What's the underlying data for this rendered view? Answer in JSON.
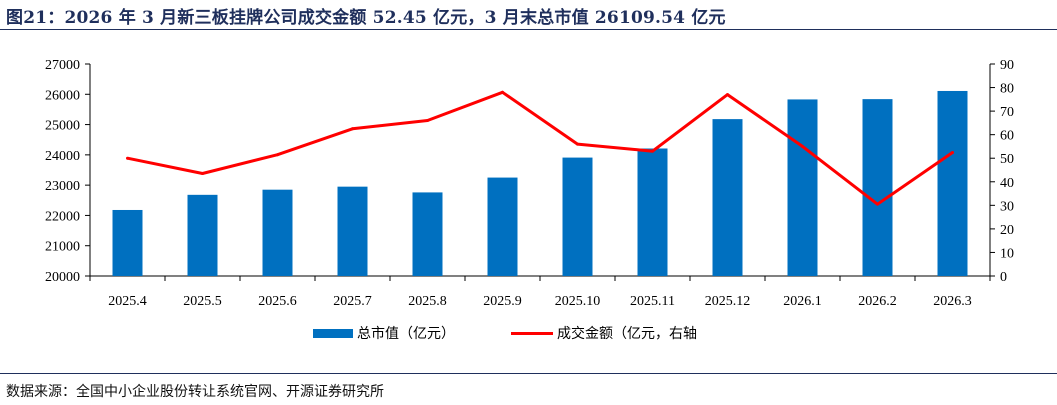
{
  "header": {
    "title": "图21：2026 年 3 月新三板挂牌公司成交金额 52.45 亿元，3 月末总市值 26109.54 亿元"
  },
  "footer": {
    "source": "数据来源：全国中小企业股份转让系统官网、开源证券研究所"
  },
  "chart_data": {
    "type": "bar",
    "categories": [
      "2025.4",
      "2025.5",
      "2025.6",
      "2025.7",
      "2025.8",
      "2025.9",
      "2025.10",
      "2025.11",
      "2025.12",
      "2026.1",
      "2026.2",
      "2026.3"
    ],
    "series": [
      {
        "name": "总市值（亿元）",
        "type": "bar",
        "axis": "left",
        "color": "#0070c0",
        "values": [
          22180,
          22680,
          22850,
          22950,
          22760,
          23250,
          23910,
          24210,
          25180,
          25830,
          25840,
          26109.54
        ]
      },
      {
        "name": "成交金额（亿元，右轴",
        "type": "line",
        "axis": "right",
        "color": "#ff0000",
        "values": [
          50,
          43.5,
          51.5,
          62.5,
          66,
          78,
          56,
          53,
          77,
          55,
          30.5,
          52.45
        ]
      }
    ],
    "y_left": {
      "min": 20000,
      "max": 27000,
      "ticks": [
        "20000",
        "21000",
        "22000",
        "23000",
        "24000",
        "25000",
        "26000",
        "27000"
      ]
    },
    "y_right": {
      "min": 0,
      "max": 90,
      "ticks": [
        "0",
        "10",
        "20",
        "30",
        "40",
        "50",
        "60",
        "70",
        "80",
        "90"
      ]
    },
    "grid": false,
    "legend_position": "bottom"
  }
}
